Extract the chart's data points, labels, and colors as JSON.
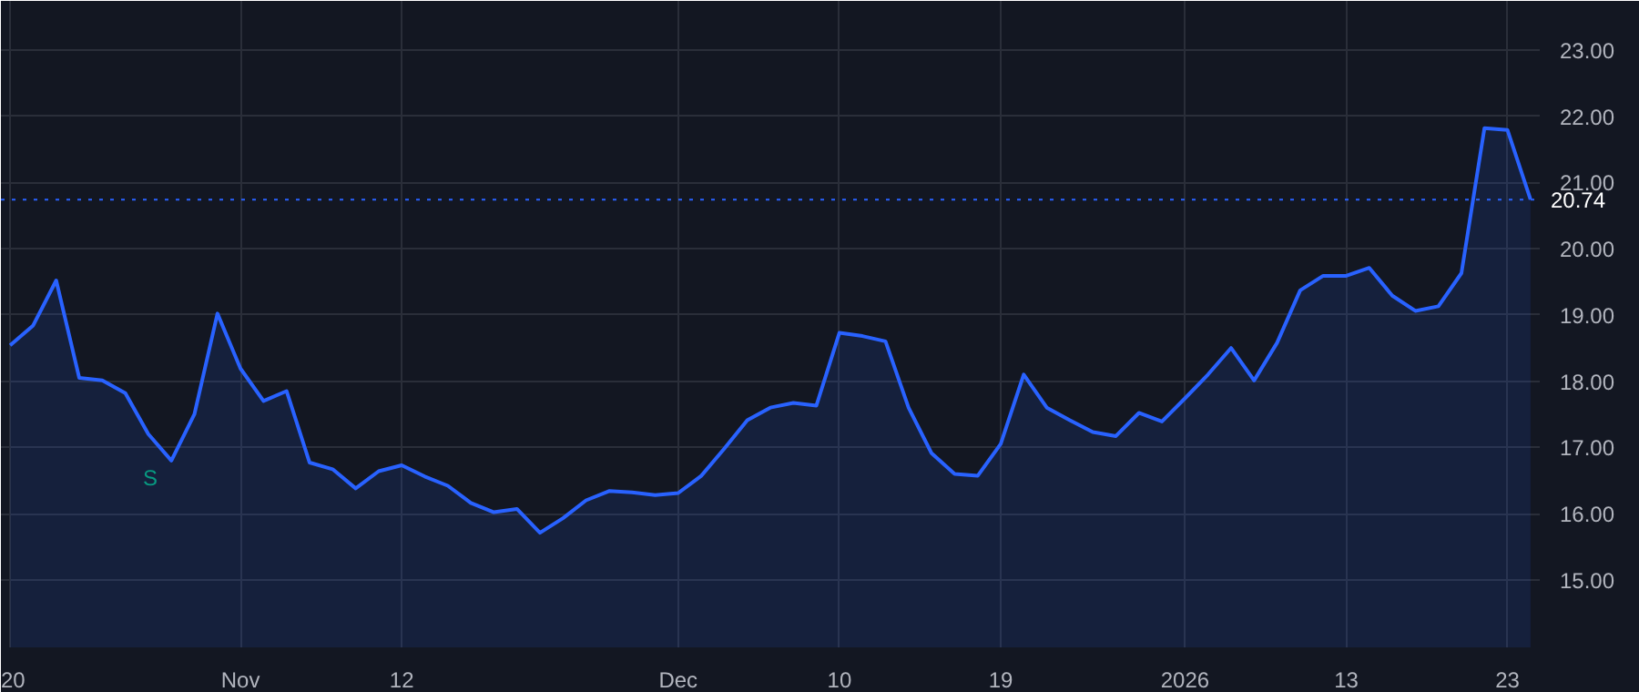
{
  "chart_data": {
    "type": "area",
    "categories": [
      "20",
      null,
      null,
      null,
      null,
      null,
      null,
      null,
      null,
      null,
      "Nov",
      null,
      null,
      null,
      null,
      null,
      null,
      "12",
      null,
      null,
      null,
      null,
      null,
      null,
      null,
      null,
      null,
      null,
      null,
      "Dec",
      null,
      null,
      null,
      null,
      null,
      null,
      "10",
      null,
      null,
      null,
      null,
      null,
      null,
      "19",
      null,
      null,
      null,
      null,
      null,
      null,
      null,
      "2026",
      null,
      null,
      null,
      null,
      null,
      null,
      "13",
      null,
      null,
      null,
      null,
      null,
      null,
      "23",
      null
    ],
    "series": [
      {
        "color": "#2962ff",
        "values": [
          18.54,
          18.84,
          19.52,
          18.05,
          18.01,
          17.82,
          17.2,
          16.8,
          17.5,
          19.02,
          18.19,
          17.7,
          17.85,
          16.77,
          16.67,
          16.38,
          16.64,
          16.73,
          16.56,
          16.42,
          16.16,
          16.02,
          16.07,
          15.71,
          15.93,
          16.2,
          16.34,
          16.32,
          16.28,
          16.31,
          16.57,
          16.98,
          17.41,
          17.6,
          17.67,
          17.63,
          18.73,
          18.68,
          18.6,
          17.6,
          16.91,
          16.6,
          16.57,
          17.05,
          18.1,
          17.6,
          17.41,
          17.23,
          17.17,
          17.52,
          17.39,
          17.74,
          18.1,
          18.5,
          18.01,
          18.58,
          19.37,
          19.59,
          19.59,
          19.71,
          19.29,
          19.06,
          19.13,
          19.63,
          21.82,
          21.79,
          20.74
        ]
      }
    ],
    "ylim": [
      13.98,
      23.74
    ],
    "yticks": [
      {
        "value": 15,
        "label": "15.00"
      },
      {
        "value": 16,
        "label": "16.00"
      },
      {
        "value": 17,
        "label": "17.00"
      },
      {
        "value": 18,
        "label": "18.00"
      },
      {
        "value": 19,
        "label": "19.00"
      },
      {
        "value": 20,
        "label": "20.00"
      },
      {
        "value": 21,
        "label": "21.00"
      },
      {
        "value": 22,
        "label": "22.00"
      },
      {
        "value": 23,
        "label": "23.00"
      }
    ],
    "grid": true,
    "ref_lines": [
      {
        "axis": "y",
        "value": 20.74,
        "label": "20.74",
        "color": "#2962ff",
        "line_style": "dotted"
      }
    ],
    "annotations": [
      "S"
    ]
  }
}
